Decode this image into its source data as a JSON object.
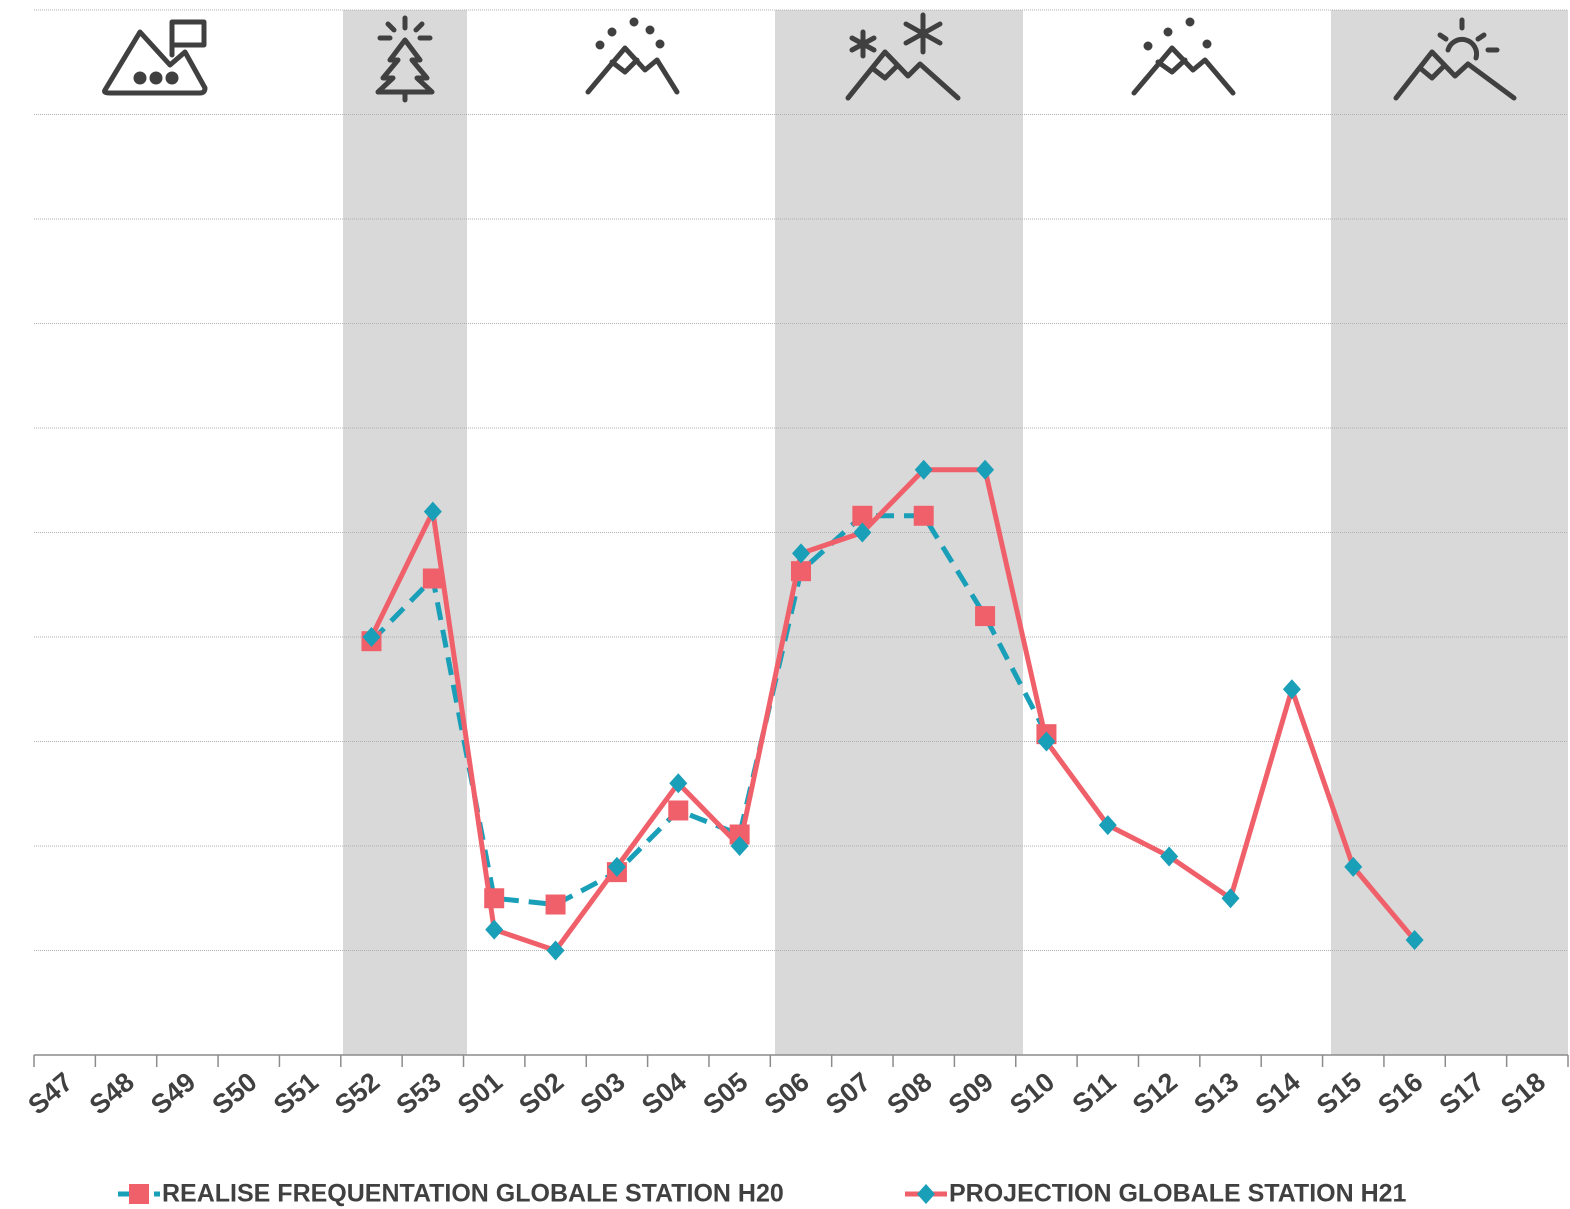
{
  "chart_data": {
    "type": "line",
    "categories": [
      "S47",
      "S48",
      "S49",
      "S50",
      "S51",
      "S52",
      "S53",
      "S01",
      "S02",
      "S03",
      "S04",
      "S05",
      "S06",
      "S07",
      "S08",
      "S09",
      "S10",
      "S11",
      "S12",
      "S13",
      "S14",
      "S15",
      "S16",
      "S17",
      "S18"
    ],
    "ylim": [
      0,
      10
    ],
    "yticks": [
      0,
      1,
      2,
      3,
      4,
      5,
      6,
      7,
      8,
      9,
      10
    ],
    "grid": true,
    "series": [
      {
        "name": "REALISE FREQUENTATION GLOBALE STATION H20",
        "color": "#1a9fb8",
        "marker_color": "#f0606a",
        "marker": "square",
        "dashed": true,
        "values": [
          null,
          null,
          null,
          null,
          null,
          3.96,
          4.56,
          1.5,
          1.44,
          1.75,
          2.34,
          2.11,
          4.63,
          5.16,
          5.16,
          4.2,
          3.07,
          null,
          null,
          null,
          null,
          null,
          null,
          null,
          null
        ]
      },
      {
        "name": "PROJECTION GLOBALE STATION H21",
        "color": "#f0606a",
        "marker_color": "#1a9fb8",
        "marker": "diamond",
        "dashed": false,
        "values": [
          null,
          null,
          null,
          null,
          null,
          4.0,
          5.2,
          1.2,
          1.0,
          1.8,
          2.6,
          2.0,
          4.8,
          5.0,
          5.6,
          5.6,
          3.0,
          2.2,
          1.9,
          1.5,
          3.5,
          1.8,
          1.1,
          null,
          null
        ]
      }
    ]
  }
}
